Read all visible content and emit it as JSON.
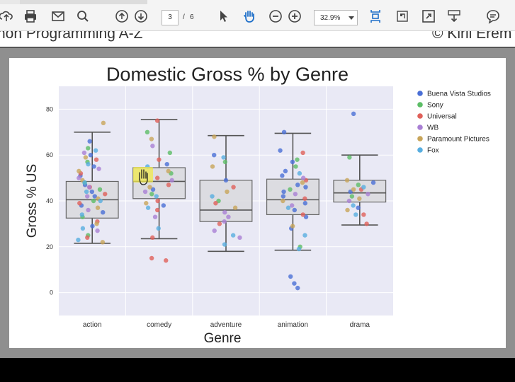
{
  "viewer": {
    "current_page": "3",
    "page_separator": "/",
    "total_pages": "6",
    "zoom": "32.9%",
    "icons": [
      "upload-icon",
      "print-icon",
      "email-icon",
      "search-icon",
      "prev-page-icon",
      "next-page-icon",
      "select-arrow-icon",
      "hand-tool-icon",
      "zoom-out-icon",
      "zoom-in-icon",
      "fit-page-icon",
      "crop-icon",
      "fullscreen-icon",
      "download-icon",
      "comment-icon"
    ]
  },
  "previous_page": {
    "left_text": "hon Programming A-Z",
    "right_text": "© Kiril Erem"
  },
  "chart_data": {
    "type": "box+strip",
    "title": "Domestic Gross % by Genre",
    "xlabel": "Genre",
    "ylabel": "Gross % US",
    "categories": [
      "action",
      "comedy",
      "adventure",
      "animation",
      "drama"
    ],
    "yticks": [
      0,
      20,
      40,
      60,
      80
    ],
    "ylim": [
      -10,
      90
    ],
    "grid": true,
    "legend_position": "right",
    "boxes": [
      {
        "category": "action",
        "whisker_low": 21.5,
        "q1": 32.5,
        "median": 40.5,
        "q3": 48.5,
        "whisker_high": 70
      },
      {
        "category": "comedy",
        "whisker_low": 23.5,
        "q1": 41,
        "median": 48.5,
        "q3": 54.5,
        "whisker_high": 75.5
      },
      {
        "category": "adventure",
        "whisker_low": 18,
        "q1": 31,
        "median": 36,
        "q3": 49,
        "whisker_high": 68.5
      },
      {
        "category": "animation",
        "whisker_low": 18.5,
        "q1": 34,
        "median": 40.5,
        "q3": 49.5,
        "whisker_high": 69.5
      },
      {
        "category": "drama",
        "whisker_low": 29.5,
        "q1": 39.5,
        "median": 43.5,
        "q3": 49,
        "whisker_high": 60
      }
    ],
    "series": [
      {
        "name": "Buena Vista Studios",
        "color": "#4a6fd6",
        "points": [
          [
            "action",
            44
          ],
          [
            "action",
            55
          ],
          [
            "action",
            38
          ],
          [
            "action",
            47
          ],
          [
            "action",
            60
          ],
          [
            "action",
            29
          ],
          [
            "action",
            51
          ],
          [
            "action",
            35
          ],
          [
            "action",
            42
          ],
          [
            "action",
            66
          ],
          [
            "comedy",
            45
          ],
          [
            "comedy",
            56
          ],
          [
            "comedy",
            38
          ],
          [
            "adventure",
            60
          ],
          [
            "adventure",
            49
          ],
          [
            "animation",
            53
          ],
          [
            "animation",
            47
          ],
          [
            "animation",
            42
          ],
          [
            "animation",
            36
          ],
          [
            "animation",
            57
          ],
          [
            "animation",
            44
          ],
          [
            "animation",
            62
          ],
          [
            "animation",
            39
          ],
          [
            "animation",
            33
          ],
          [
            "animation",
            51
          ],
          [
            "animation",
            28
          ],
          [
            "animation",
            46
          ],
          [
            "animation",
            70
          ],
          [
            "animation",
            7
          ],
          [
            "animation",
            4
          ],
          [
            "animation",
            2
          ],
          [
            "drama",
            78
          ],
          [
            "drama",
            44
          ],
          [
            "drama",
            48
          ],
          [
            "drama",
            37
          ]
        ]
      },
      {
        "name": "Sony",
        "color": "#5cbd66",
        "points": [
          [
            "action",
            48
          ],
          [
            "action",
            40
          ],
          [
            "action",
            57
          ],
          [
            "action",
            33
          ],
          [
            "action",
            45
          ],
          [
            "action",
            25
          ],
          [
            "action",
            63
          ],
          [
            "comedy",
            70
          ],
          [
            "comedy",
            52
          ],
          [
            "comedy",
            43
          ],
          [
            "comedy",
            61
          ],
          [
            "adventure",
            57
          ],
          [
            "adventure",
            40
          ],
          [
            "animation",
            55
          ],
          [
            "animation",
            45
          ],
          [
            "animation",
            20
          ],
          [
            "animation",
            58
          ],
          [
            "drama",
            59
          ],
          [
            "drama",
            42
          ],
          [
            "drama",
            47
          ]
        ]
      },
      {
        "name": "Universal",
        "color": "#e0605a",
        "points": [
          [
            "action",
            52
          ],
          [
            "action",
            39
          ],
          [
            "action",
            46
          ],
          [
            "action",
            31
          ],
          [
            "action",
            58
          ],
          [
            "action",
            43
          ],
          [
            "action",
            24
          ],
          [
            "comedy",
            75
          ],
          [
            "comedy",
            58
          ],
          [
            "comedy",
            50
          ],
          [
            "comedy",
            47
          ],
          [
            "comedy",
            40
          ],
          [
            "comedy",
            36
          ],
          [
            "comedy",
            24
          ],
          [
            "comedy",
            15
          ],
          [
            "comedy",
            14
          ],
          [
            "adventure",
            39
          ],
          [
            "adventure",
            30
          ],
          [
            "adventure",
            46
          ],
          [
            "animation",
            61
          ],
          [
            "animation",
            49
          ],
          [
            "animation",
            41
          ],
          [
            "animation",
            34
          ],
          [
            "drama",
            30
          ],
          [
            "drama",
            34
          ],
          [
            "drama",
            45
          ]
        ]
      },
      {
        "name": "WB",
        "color": "#a97fd4",
        "points": [
          [
            "action",
            50
          ],
          [
            "action",
            42
          ],
          [
            "action",
            36
          ],
          [
            "action",
            61
          ],
          [
            "action",
            46
          ],
          [
            "action",
            27
          ],
          [
            "action",
            54
          ],
          [
            "comedy",
            64
          ],
          [
            "comedy",
            49
          ],
          [
            "comedy",
            44
          ],
          [
            "comedy",
            33
          ],
          [
            "adventure",
            33
          ],
          [
            "adventure",
            31
          ],
          [
            "adventure",
            27
          ],
          [
            "adventure",
            24
          ],
          [
            "adventure",
            35
          ],
          [
            "animation",
            50
          ],
          [
            "animation",
            43
          ],
          [
            "animation",
            38
          ],
          [
            "drama",
            40
          ],
          [
            "drama",
            43
          ]
        ]
      },
      {
        "name": "Paramount Pictures",
        "color": "#c8a55a",
        "points": [
          [
            "action",
            74
          ],
          [
            "action",
            59
          ],
          [
            "action",
            53
          ],
          [
            "action",
            49
          ],
          [
            "action",
            41
          ],
          [
            "action",
            37
          ],
          [
            "action",
            30
          ],
          [
            "action",
            22
          ],
          [
            "comedy",
            67
          ],
          [
            "comedy",
            53
          ],
          [
            "comedy",
            46
          ],
          [
            "comedy",
            39
          ],
          [
            "adventure",
            68
          ],
          [
            "adventure",
            55
          ],
          [
            "adventure",
            44
          ],
          [
            "adventure",
            37
          ],
          [
            "animation",
            48
          ],
          [
            "animation",
            40
          ],
          [
            "animation",
            29
          ],
          [
            "drama",
            49
          ],
          [
            "drama",
            45
          ],
          [
            "drama",
            41
          ],
          [
            "drama",
            36
          ]
        ]
      },
      {
        "name": "Fox",
        "color": "#58aee0",
        "points": [
          [
            "action",
            56
          ],
          [
            "action",
            48
          ],
          [
            "action",
            44
          ],
          [
            "action",
            40
          ],
          [
            "action",
            34
          ],
          [
            "action",
            28
          ],
          [
            "action",
            23
          ],
          [
            "action",
            62
          ],
          [
            "comedy",
            55
          ],
          [
            "comedy",
            42
          ],
          [
            "comedy",
            37
          ],
          [
            "comedy",
            28
          ],
          [
            "adventure",
            59
          ],
          [
            "adventure",
            42
          ],
          [
            "adventure",
            25
          ],
          [
            "adventure",
            21
          ],
          [
            "animation",
            52
          ],
          [
            "animation",
            37
          ],
          [
            "animation",
            25
          ],
          [
            "animation",
            19
          ],
          [
            "drama",
            46
          ],
          [
            "drama",
            38
          ],
          [
            "drama",
            34
          ]
        ]
      }
    ]
  }
}
